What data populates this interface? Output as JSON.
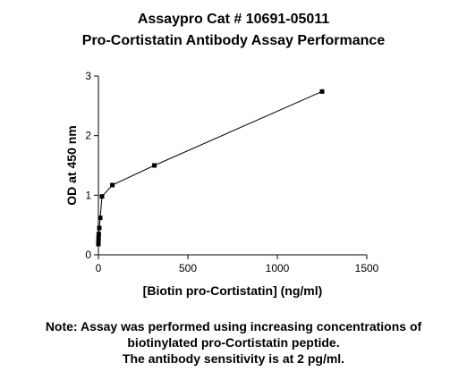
{
  "chart_data": {
    "type": "line",
    "title": "Assaypro Cat # 10691-05011",
    "subtitle": "Pro-Cortistatin Antibody Assay Performance",
    "xlabel": "[Biotin pro-Cortistatin] (ng/ml)",
    "ylabel": "OD at 450 nm",
    "xlim": [
      0,
      1500
    ],
    "ylim": [
      0,
      3
    ],
    "xticks": [
      "0",
      "500",
      "1000",
      "1500"
    ],
    "yticks": [
      "0",
      "1",
      "2",
      "3"
    ],
    "grid": false,
    "series": [
      {
        "x": [
          0,
          0.3,
          1,
          2,
          5,
          10,
          20,
          78,
          313,
          1250
        ],
        "y": [
          0.18,
          0.22,
          0.28,
          0.35,
          0.45,
          0.62,
          0.98,
          1.17,
          1.5,
          2.74
        ]
      }
    ]
  },
  "note": {
    "line1": "Note: Assay was performed using increasing concentrations of",
    "line2": "biotinylated pro-Cortistatin peptide.",
    "line3": "The antibody sensitivity is at 2 pg/ml."
  }
}
